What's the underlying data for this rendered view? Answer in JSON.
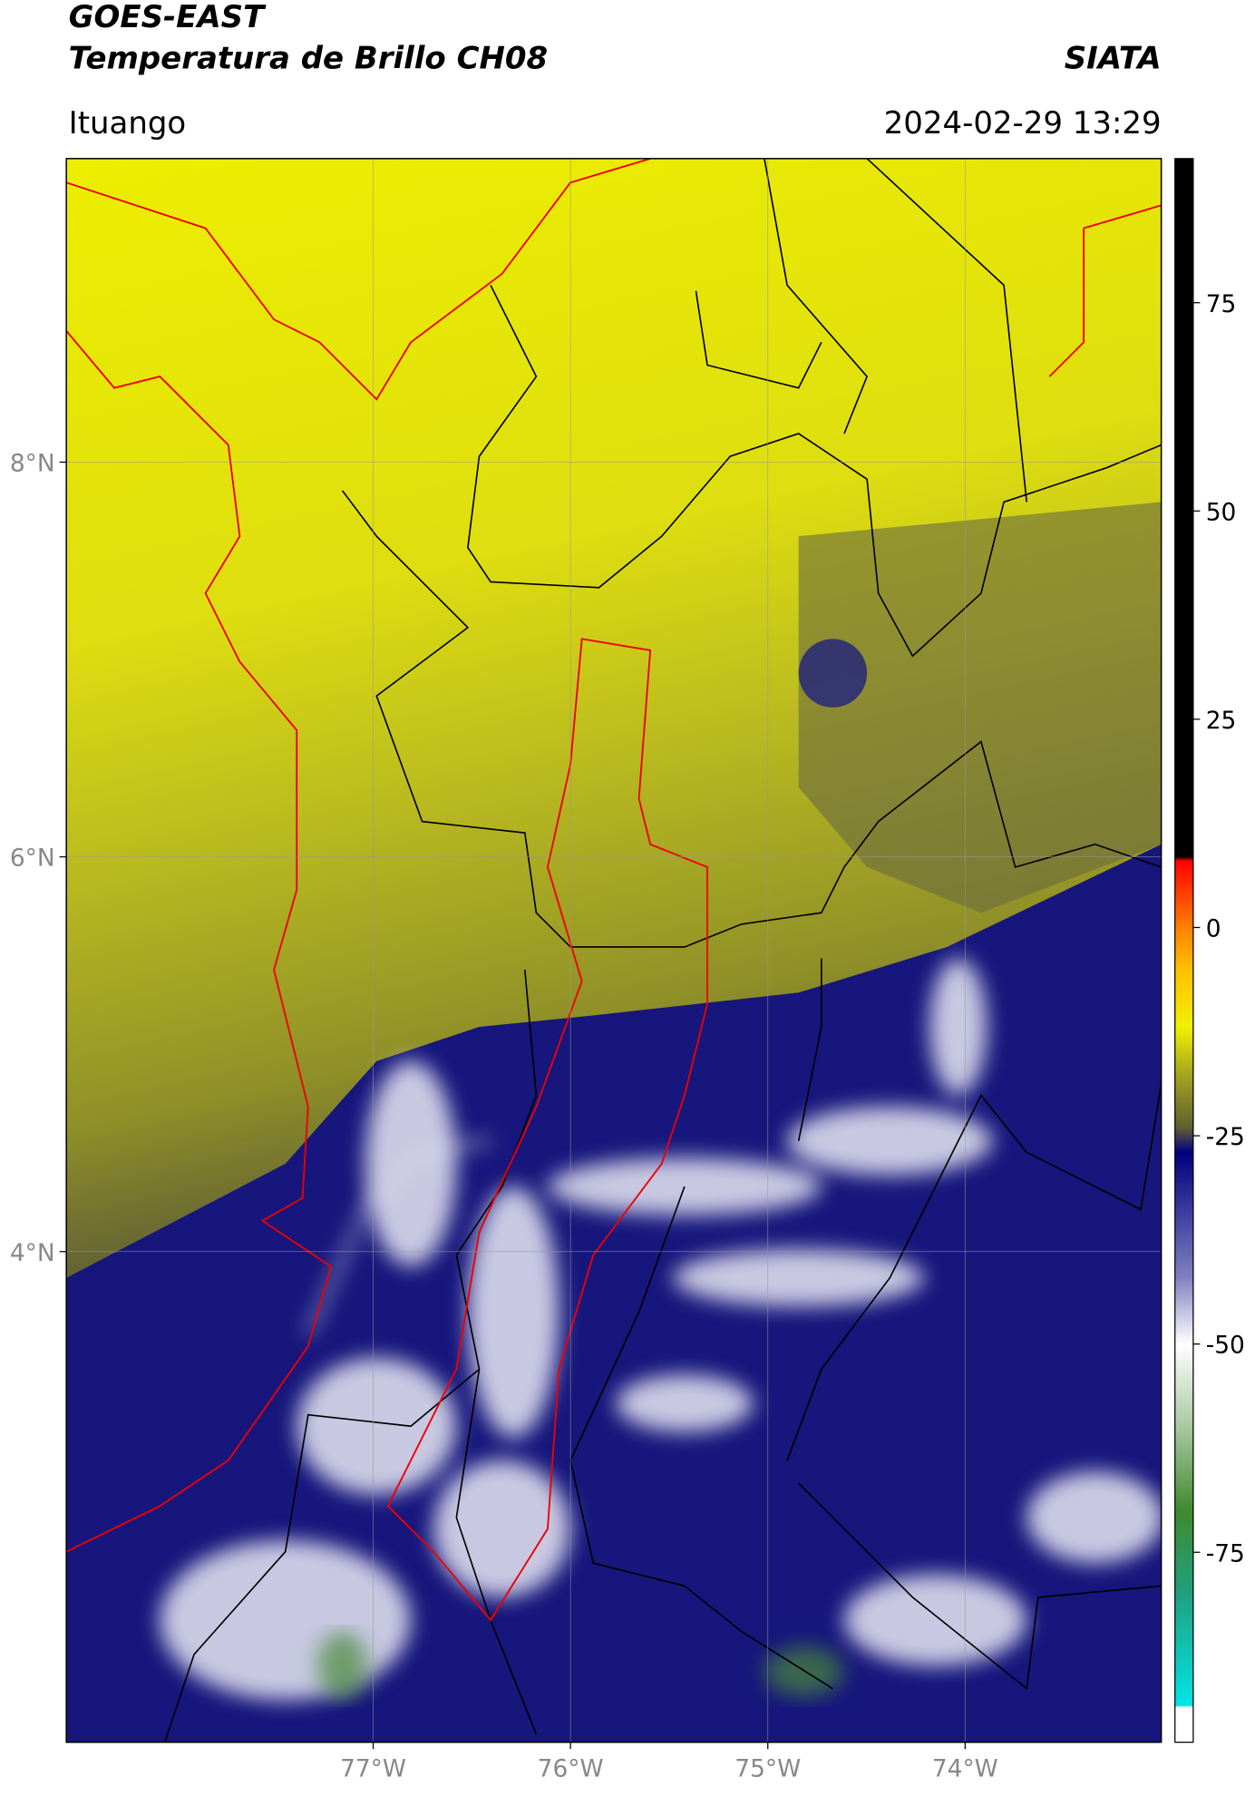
{
  "header": {
    "satellite": "GOES-EAST",
    "product": "Temperatura de Brillo CH08",
    "agency": "SIATA",
    "location": "Ituango",
    "datetime": "2024-02-29 13:29"
  },
  "map": {
    "xlim": [
      -78.555,
      -73.006
    ],
    "ylim": [
      1.514,
      9.538
    ],
    "xticks": [
      {
        "value": -77,
        "label": "77°W"
      },
      {
        "value": -76,
        "label": "76°W"
      },
      {
        "value": -75,
        "label": "75°W"
      },
      {
        "value": -74,
        "label": "74°W"
      }
    ],
    "yticks": [
      {
        "value": 4,
        "label": "4°N"
      },
      {
        "value": 6,
        "label": "6°N"
      },
      {
        "value": 8,
        "label": "8°N"
      }
    ],
    "grid": true
  },
  "colorbar": {
    "clim": [
      -97.8,
      92.3
    ],
    "ticks": [
      -75,
      -50,
      -25,
      0,
      25,
      50,
      75
    ],
    "colormap": [
      {
        "value": -97.8,
        "color": "#ffffff"
      },
      {
        "value": -93.6,
        "color": "#ffffff"
      },
      {
        "value": -93.4,
        "color": "#00e5e5"
      },
      {
        "value": -80,
        "color": "#20a080"
      },
      {
        "value": -70,
        "color": "#3f8a30"
      },
      {
        "value": -60,
        "color": "#a8c8a0"
      },
      {
        "value": -50,
        "color": "#ffffff"
      },
      {
        "value": -42,
        "color": "#8080c0"
      },
      {
        "value": -27,
        "color": "#000080"
      },
      {
        "value": -24,
        "color": "#606030"
      },
      {
        "value": -18,
        "color": "#a0a020"
      },
      {
        "value": -12,
        "color": "#f0f000"
      },
      {
        "value": -5,
        "color": "#ffc000"
      },
      {
        "value": 0,
        "color": "#ff8000"
      },
      {
        "value": 8,
        "color": "#ff0000"
      },
      {
        "value": 8.5,
        "color": "#000000"
      },
      {
        "value": 92.3,
        "color": "#000000"
      }
    ]
  }
}
